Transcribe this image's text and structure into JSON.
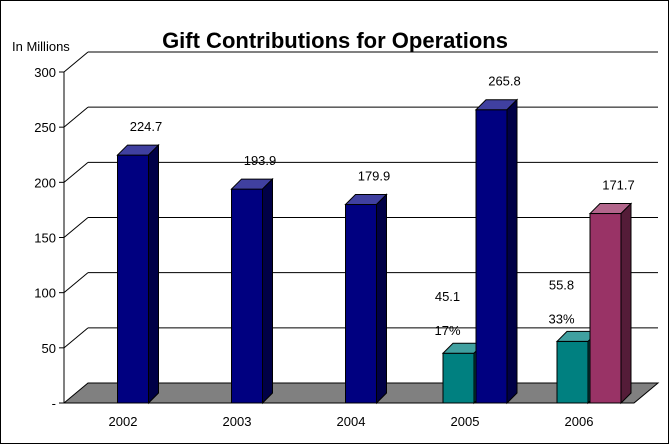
{
  "chart_data": {
    "type": "bar",
    "title": "Gift Contributions for Operations",
    "ylabel": "In Millions",
    "ylim": [
      0,
      300
    ],
    "y_ticks": [
      {
        "value": 0,
        "label": "-"
      },
      {
        "value": 50,
        "label": "50"
      },
      {
        "value": 100,
        "label": "100"
      },
      {
        "value": 150,
        "label": "150"
      },
      {
        "value": 200,
        "label": "200"
      },
      {
        "value": 250,
        "label": "250"
      },
      {
        "value": 300,
        "label": "300"
      }
    ],
    "grid": true,
    "style": "3d",
    "categories": [
      "2002",
      "2003",
      "2004",
      "2005",
      "2006"
    ],
    "series": [
      {
        "color": "#000080",
        "values": [
          224.7,
          193.9,
          179.9,
          265.8,
          null
        ]
      },
      {
        "color": "#008080",
        "values": [
          null,
          null,
          null,
          45.1,
          55.8
        ]
      },
      {
        "color": "#993366",
        "values": [
          null,
          null,
          null,
          null,
          171.7
        ]
      }
    ],
    "data_labels": [
      {
        "category": "2002",
        "series": 0,
        "text": "224.7"
      },
      {
        "category": "2003",
        "series": 0,
        "text": "193.9"
      },
      {
        "category": "2004",
        "series": 0,
        "text": "179.9"
      },
      {
        "category": "2005",
        "series": 0,
        "text": "265.8"
      },
      {
        "category": "2005",
        "series": 1,
        "text": "45.1"
      },
      {
        "category": "2006",
        "series": 1,
        "text": "55.8"
      },
      {
        "category": "2006",
        "series": 2,
        "text": "171.7"
      }
    ],
    "annotations": [
      {
        "category": "2005",
        "series": 1,
        "text": "17%"
      },
      {
        "category": "2006",
        "series": 1,
        "text": "33%"
      }
    ]
  }
}
